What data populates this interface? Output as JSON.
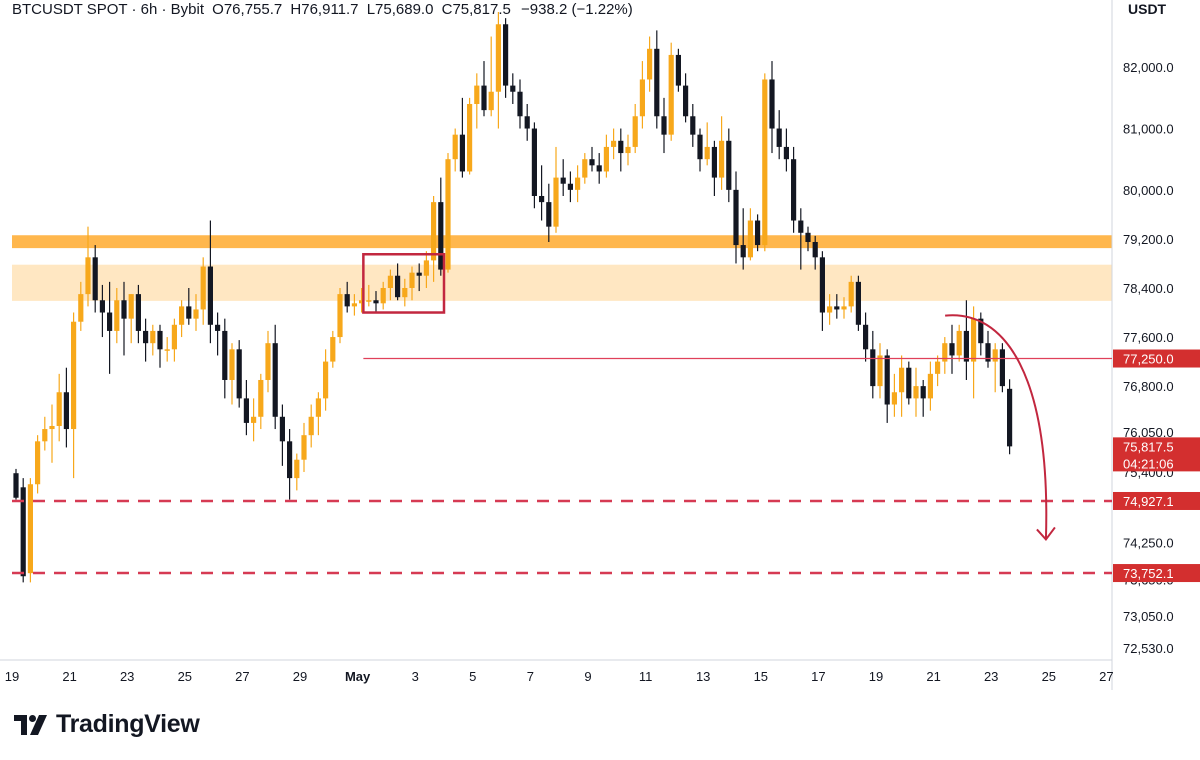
{
  "header": {
    "symbol": "BTCUSDT SPOT · 6h · Bybit",
    "open_label": "O",
    "open": "76,755.7",
    "high_label": "H",
    "high": "76,911.7",
    "low_label": "L",
    "low": "75,689.0",
    "close_label": "C",
    "close": "75,817.5",
    "change": "−938.2 (−1.22%)"
  },
  "currency": "USDT",
  "brand": "TradingView",
  "colors": {
    "up": "#F7A81B",
    "down": "#131722",
    "zone_strong": "#FFB74D",
    "zone_light": "#FFE7C2",
    "level_line": "#E0405A",
    "dashed": "#D63A53",
    "arrow": "#C2273F",
    "price_tag": "#D32F2F",
    "grid_border": "#D1D4DC"
  },
  "chart_data": {
    "type": "candlestick",
    "interval": "6h",
    "ylim": [
      72400,
      83100
    ],
    "y_ticks": [
      {
        "value": 82000,
        "label": "82,000.0"
      },
      {
        "value": 81000,
        "label": "81,000.0"
      },
      {
        "value": 80000,
        "label": "80,000.0"
      },
      {
        "value": 79200,
        "label": "79,200.0"
      },
      {
        "value": 78400,
        "label": "78,400.0"
      },
      {
        "value": 77600,
        "label": "77,600.0"
      },
      {
        "value": 76800,
        "label": "76,800.0"
      },
      {
        "value": 76050,
        "label": "76,050.0"
      },
      {
        "value": 75400,
        "label": "75,400.0"
      },
      {
        "value": 74250,
        "label": "74,250.0"
      },
      {
        "value": 73650,
        "label": "73,650.0"
      },
      {
        "value": 73050,
        "label": "73,050.0"
      },
      {
        "value": 72530,
        "label": "72,530.0"
      }
    ],
    "x_start_day": 19,
    "x_ticks": [
      {
        "day": 19,
        "label": "19"
      },
      {
        "day": 21,
        "label": "21"
      },
      {
        "day": 23,
        "label": "23"
      },
      {
        "day": 25,
        "label": "25"
      },
      {
        "day": 27,
        "label": "27"
      },
      {
        "day": 29,
        "label": "29"
      },
      {
        "day": 31,
        "label": "May",
        "bold": true
      },
      {
        "day": 33,
        "label": "3"
      },
      {
        "day": 35,
        "label": "5"
      },
      {
        "day": 37,
        "label": "7"
      },
      {
        "day": 39,
        "label": "9"
      },
      {
        "day": 41,
        "label": "11"
      },
      {
        "day": 43,
        "label": "13"
      },
      {
        "day": 45,
        "label": "15"
      },
      {
        "day": 47,
        "label": "17"
      },
      {
        "day": 49,
        "label": "19"
      },
      {
        "day": 51,
        "label": "21"
      },
      {
        "day": 53,
        "label": "23"
      },
      {
        "day": 55,
        "label": "25"
      },
      {
        "day": 57,
        "label": "27"
      }
    ],
    "zones": [
      {
        "name": "resistance-zone-upper",
        "from": 79050,
        "to": 79260,
        "style": "strong"
      },
      {
        "name": "resistance-zone-lower",
        "from": 78190,
        "to": 78780,
        "style": "light"
      }
    ],
    "consolidation_box": {
      "from_day": 31.2,
      "to_day": 34.0,
      "low": 78000,
      "high": 78950
    },
    "level": {
      "value": 77250,
      "label": "77,250.0",
      "from_day": 31.2
    },
    "dashed_levels": [
      {
        "value": 74927.1,
        "label": "74,927.1"
      },
      {
        "value": 73752.1,
        "label": "73,752.1"
      }
    ],
    "last_price": {
      "value": 75817.5,
      "label": "75,817.5",
      "countdown": "04:21:06"
    },
    "projection": {
      "from_day": 51.4,
      "from_value": 77950,
      "to_day": 54.9,
      "to_value": 74300
    },
    "candles": [
      [
        75380,
        75450,
        74950,
        74980
      ],
      [
        75150,
        75300,
        73600,
        73700
      ],
      [
        73750,
        75300,
        73600,
        75200
      ],
      [
        75200,
        76000,
        75050,
        75900
      ],
      [
        75900,
        76300,
        75750,
        76100
      ],
      [
        76100,
        76500,
        75550,
        76150
      ],
      [
        76150,
        77000,
        75900,
        76700
      ],
      [
        76700,
        77100,
        75800,
        76100
      ],
      [
        76100,
        78000,
        75300,
        77850
      ],
      [
        77850,
        78500,
        77700,
        78300
      ],
      [
        78300,
        79400,
        78100,
        78900
      ],
      [
        78900,
        79100,
        78000,
        78200
      ],
      [
        78200,
        78450,
        77600,
        78000
      ],
      [
        78000,
        78500,
        77000,
        77700
      ],
      [
        77700,
        78400,
        77500,
        78200
      ],
      [
        78200,
        78500,
        77300,
        77900
      ],
      [
        77900,
        78300,
        77500,
        78300
      ],
      [
        78300,
        78450,
        77500,
        77700
      ],
      [
        77700,
        77900,
        77200,
        77500
      ],
      [
        77500,
        77800,
        77300,
        77700
      ],
      [
        77700,
        77800,
        77100,
        77400
      ],
      [
        77400,
        77600,
        77200,
        77400
      ],
      [
        77400,
        77900,
        77200,
        77800
      ],
      [
        77800,
        78200,
        77600,
        78100
      ],
      [
        78100,
        78400,
        77800,
        77900
      ],
      [
        77900,
        78300,
        77700,
        78050
      ],
      [
        78050,
        78900,
        77800,
        78750
      ],
      [
        78750,
        79500,
        77500,
        77800
      ],
      [
        77800,
        78000,
        77300,
        77700
      ],
      [
        77700,
        77900,
        76600,
        76900
      ],
      [
        76900,
        77500,
        76500,
        77400
      ],
      [
        77400,
        77550,
        76450,
        76600
      ],
      [
        76600,
        76900,
        76000,
        76200
      ],
      [
        76200,
        76600,
        75900,
        76300
      ],
      [
        76300,
        77000,
        76100,
        76900
      ],
      [
        76900,
        77700,
        76700,
        77500
      ],
      [
        77500,
        77800,
        76100,
        76300
      ],
      [
        76300,
        76500,
        75500,
        75900
      ],
      [
        75900,
        76100,
        74950,
        75300
      ],
      [
        75300,
        75700,
        75100,
        75600
      ],
      [
        75600,
        76200,
        75400,
        76000
      ],
      [
        76000,
        76500,
        75800,
        76300
      ],
      [
        76300,
        76700,
        76000,
        76600
      ],
      [
        76600,
        77400,
        76400,
        77200
      ],
      [
        77200,
        77700,
        77100,
        77600
      ],
      [
        77600,
        78400,
        77500,
        78300
      ],
      [
        78300,
        78500,
        78000,
        78100
      ],
      [
        78100,
        78300,
        77950,
        78150
      ],
      [
        78150,
        78400,
        78000,
        78200
      ],
      [
        78200,
        78450,
        78100,
        78200
      ],
      [
        78200,
        78350,
        78000,
        78150
      ],
      [
        78150,
        78500,
        78050,
        78400
      ],
      [
        78400,
        78700,
        78200,
        78600
      ],
      [
        78600,
        78800,
        78200,
        78250
      ],
      [
        78250,
        78550,
        78100,
        78400
      ],
      [
        78400,
        78750,
        78200,
        78650
      ],
      [
        78650,
        78800,
        78350,
        78600
      ],
      [
        78600,
        79000,
        78400,
        78850
      ],
      [
        78850,
        79900,
        78500,
        79800
      ],
      [
        79800,
        80200,
        78600,
        78700
      ],
      [
        78700,
        80600,
        78650,
        80500
      ],
      [
        80500,
        81000,
        80300,
        80900
      ],
      [
        80900,
        81500,
        80200,
        80300
      ],
      [
        80300,
        81500,
        80250,
        81400
      ],
      [
        81400,
        81900,
        81000,
        81700
      ],
      [
        81700,
        82100,
        81200,
        81300
      ],
      [
        81300,
        82500,
        81200,
        81600
      ],
      [
        81600,
        82900,
        81000,
        82700
      ],
      [
        82700,
        82800,
        81500,
        81700
      ],
      [
        81700,
        81900,
        81400,
        81600
      ],
      [
        81600,
        81800,
        81000,
        81200
      ],
      [
        81200,
        81400,
        80800,
        81000
      ],
      [
        81000,
        81100,
        79700,
        79900
      ],
      [
        79900,
        80400,
        79500,
        79800
      ],
      [
        79800,
        80100,
        79150,
        79400
      ],
      [
        79400,
        80700,
        79300,
        80200
      ],
      [
        80200,
        80500,
        79900,
        80100
      ],
      [
        80100,
        80300,
        79800,
        80000
      ],
      [
        80000,
        80400,
        79800,
        80200
      ],
      [
        80200,
        80600,
        80100,
        80500
      ],
      [
        80500,
        80700,
        80300,
        80400
      ],
      [
        80400,
        80600,
        80100,
        80300
      ],
      [
        80300,
        80900,
        80200,
        80700
      ],
      [
        80700,
        81000,
        80500,
        80800
      ],
      [
        80800,
        81000,
        80300,
        80600
      ],
      [
        80600,
        80900,
        80400,
        80700
      ],
      [
        80700,
        81400,
        80600,
        81200
      ],
      [
        81200,
        82100,
        81000,
        81800
      ],
      [
        81800,
        82500,
        81600,
        82300
      ],
      [
        82300,
        82600,
        81000,
        81200
      ],
      [
        81200,
        81500,
        80600,
        80900
      ],
      [
        80900,
        82400,
        80800,
        82200
      ],
      [
        82200,
        82300,
        81600,
        81700
      ],
      [
        81700,
        81900,
        81100,
        81200
      ],
      [
        81200,
        81400,
        80700,
        80900
      ],
      [
        80900,
        81000,
        80300,
        80500
      ],
      [
        80500,
        81100,
        80400,
        80700
      ],
      [
        80700,
        80800,
        79900,
        80200
      ],
      [
        80200,
        81200,
        80000,
        80800
      ],
      [
        80800,
        81000,
        79800,
        80000
      ],
      [
        80000,
        80300,
        78800,
        79100
      ],
      [
        79100,
        79700,
        78700,
        78900
      ],
      [
        78900,
        79700,
        78850,
        79500
      ],
      [
        79500,
        79600,
        79000,
        79100
      ],
      [
        79100,
        81900,
        79000,
        81800
      ],
      [
        81800,
        82100,
        80600,
        81000
      ],
      [
        81000,
        81300,
        80500,
        80700
      ],
      [
        80700,
        81000,
        80300,
        80500
      ],
      [
        80500,
        80700,
        79300,
        79500
      ],
      [
        79500,
        79700,
        78700,
        79300
      ],
      [
        79300,
        79400,
        79000,
        79150
      ],
      [
        79150,
        79250,
        78700,
        78900
      ],
      [
        78900,
        79000,
        77700,
        78000
      ],
      [
        78000,
        78300,
        77800,
        78100
      ],
      [
        78100,
        78300,
        77900,
        78050
      ],
      [
        78050,
        78250,
        77900,
        78100
      ],
      [
        78100,
        78600,
        78000,
        78500
      ],
      [
        78500,
        78600,
        77700,
        77800
      ],
      [
        77800,
        78000,
        77200,
        77400
      ],
      [
        77400,
        77700,
        76600,
        76800
      ],
      [
        76800,
        77500,
        76600,
        77300
      ],
      [
        77300,
        77400,
        76200,
        76500
      ],
      [
        76500,
        77000,
        76300,
        76700
      ],
      [
        76700,
        77300,
        76300,
        77100
      ],
      [
        77100,
        77200,
        76500,
        76600
      ],
      [
        76600,
        77100,
        76300,
        76800
      ],
      [
        76800,
        76900,
        76300,
        76600
      ],
      [
        76600,
        77200,
        76400,
        77000
      ],
      [
        77000,
        77300,
        76800,
        77200
      ],
      [
        77200,
        77600,
        77000,
        77500
      ],
      [
        77500,
        77800,
        77000,
        77300
      ],
      [
        77300,
        77800,
        77200,
        77700
      ],
      [
        77700,
        78200,
        76900,
        77200
      ],
      [
        77200,
        78100,
        76600,
        77900
      ],
      [
        77900,
        78000,
        77300,
        77500
      ],
      [
        77500,
        77700,
        77100,
        77200
      ],
      [
        77200,
        77500,
        76700,
        77400
      ],
      [
        77400,
        77500,
        76700,
        76800
      ],
      [
        76755.7,
        76911.7,
        75689.0,
        75817.5
      ]
    ]
  }
}
